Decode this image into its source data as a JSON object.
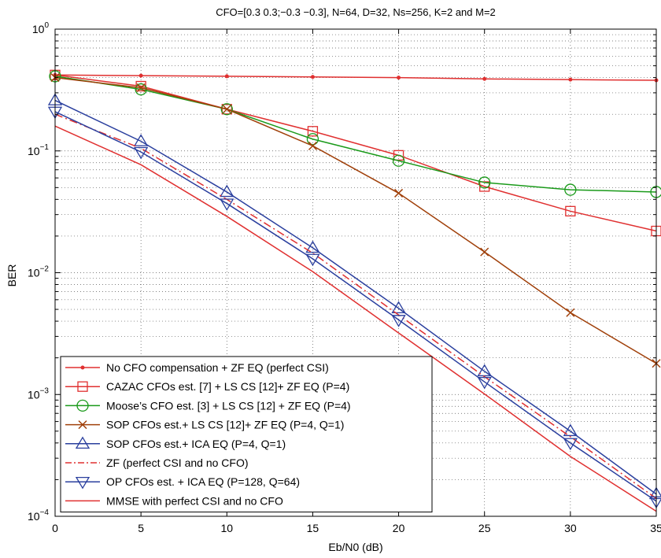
{
  "chart_data": {
    "type": "line",
    "title": "CFO=[0.3 0.3;−0.3 −0.3], N=64, D=32, Ns=256, K=2 and M=2",
    "xlabel": "Eb/N0 (dB)",
    "ylabel": "BER",
    "xlim": [
      0,
      35
    ],
    "ylim": [
      0.0001,
      1
    ],
    "yscale": "log",
    "grid": true,
    "legend_position": "bottom-left",
    "x_ticks": [
      "0",
      "5",
      "10",
      "15",
      "20",
      "25",
      "30",
      "35"
    ],
    "y_ticks": [
      {
        "base": "10",
        "exp": "0"
      },
      {
        "base": "10",
        "exp": "−1"
      },
      {
        "base": "10",
        "exp": "−2"
      },
      {
        "base": "10",
        "exp": "−3"
      },
      {
        "base": "10",
        "exp": "−4"
      }
    ],
    "x": [
      0,
      5,
      10,
      15,
      20,
      25,
      30,
      35
    ],
    "series": [
      {
        "name": "No CFO compensation + ZF EQ (perfect CSI)",
        "color": "#e03030",
        "marker": "dot",
        "dash": "solid",
        "values": [
          0.42,
          0.415,
          0.41,
          0.405,
          0.4,
          0.39,
          0.385,
          0.38
        ]
      },
      {
        "name": "CAZAC CFOs est. [7] + LS CS [12]+ ZF EQ (P=4)",
        "color": "#e03030",
        "marker": "square",
        "dash": "solid",
        "values": [
          0.42,
          0.34,
          0.22,
          0.145,
          0.092,
          0.051,
          0.032,
          0.022
        ]
      },
      {
        "name": "Moose’s CFO est. [3] + LS CS [12] + ZF EQ (P=4)",
        "color": "#1a9a1a",
        "marker": "circle",
        "dash": "solid",
        "values": [
          0.41,
          0.32,
          0.22,
          0.125,
          0.083,
          0.055,
          0.048,
          0.046
        ]
      },
      {
        "name": "SOP CFOs est.+ LS CS [12]+ ZF EQ (P=4, Q=1)",
        "color": "#a0400a",
        "marker": "x",
        "dash": "solid",
        "values": [
          0.4,
          0.33,
          0.22,
          0.11,
          0.045,
          0.0148,
          0.0047,
          0.0018
        ]
      },
      {
        "name": "SOP CFOs est.+ ICA EQ (P=4, Q=1)",
        "color": "#2a3f9e",
        "marker": "triangle-up",
        "dash": "solid",
        "values": [
          0.26,
          0.12,
          0.046,
          0.016,
          0.0051,
          0.00155,
          0.0005,
          0.000152
        ]
      },
      {
        "name": "ZF (perfect CSI and no CFO)",
        "color": "#e03030",
        "marker": "none",
        "dash": "dashdot",
        "values": [
          0.2,
          0.105,
          0.04,
          0.0145,
          0.0045,
          0.0014,
          0.00045,
          0.00014
        ]
      },
      {
        "name": "OP CFOs est. + ICA EQ (P=128, Q=64)",
        "color": "#2a3f9e",
        "marker": "triangle-down",
        "dash": "solid",
        "values": [
          0.21,
          0.098,
          0.037,
          0.013,
          0.0041,
          0.00127,
          0.0004,
          0.000133
        ]
      },
      {
        "name": "MMSE with perfect CSI and no CFO",
        "color": "#e03030",
        "marker": "none",
        "dash": "solid",
        "values": [
          0.16,
          0.077,
          0.029,
          0.0102,
          0.0032,
          0.00101,
          0.00031,
          0.00011
        ]
      }
    ]
  }
}
